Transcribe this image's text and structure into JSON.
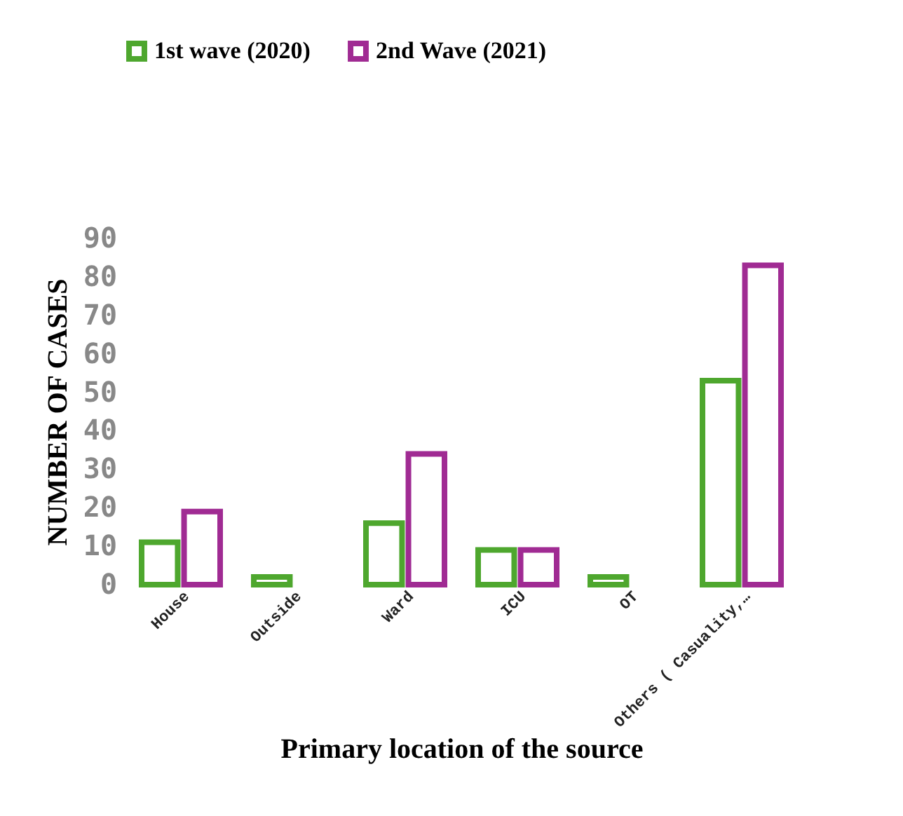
{
  "chart_data": {
    "type": "bar",
    "xlabel": "Primary location of the source",
    "ylabel": "NUMBER OF CASES",
    "categories": [
      "House",
      "Outside",
      "Ward",
      "ICU",
      "OT",
      "Others ( Casuality,…"
    ],
    "series": [
      {
        "name": "1st wave (2020)",
        "color": "#4ea72e",
        "values": [
          11,
          2,
          16,
          9,
          2,
          53
        ]
      },
      {
        "name": "2nd Wave (2021)",
        "color": "#a02b93",
        "values": [
          19,
          null,
          34,
          9,
          null,
          83
        ]
      }
    ],
    "ylim": [
      0,
      90
    ],
    "yticks": [
      0,
      10,
      20,
      30,
      40,
      50,
      60,
      70,
      80,
      90
    ],
    "grid": false,
    "legend": "top"
  }
}
